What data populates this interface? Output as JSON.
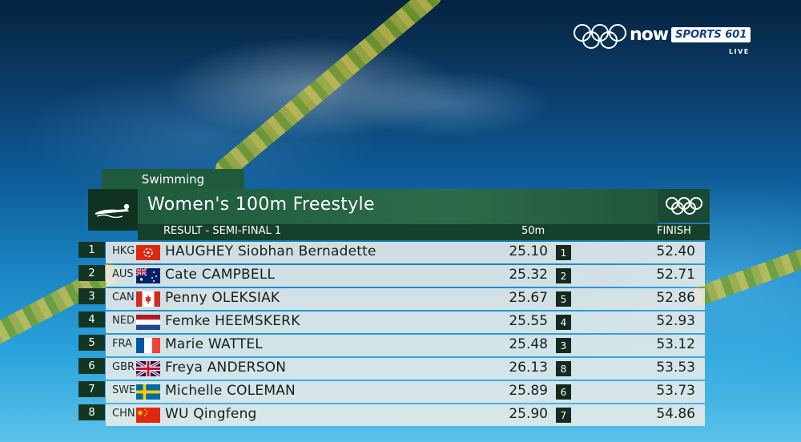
{
  "broadcast": {
    "brand": "now",
    "channel": "SPORTS 601",
    "status": "LIVE"
  },
  "graphic": {
    "sport": "Swimming",
    "event": "Women's 100m Freestyle",
    "stage": "RESULT - SEMI-FINAL 1",
    "col_split": "50m",
    "col_finish": "FINISH"
  },
  "results": [
    {
      "rank": "1",
      "country": "HKG",
      "flag": "hkg",
      "name": "HAUGHEY Siobhan Bernadette",
      "split": "25.10",
      "split_rank": "1",
      "finish": "52.40"
    },
    {
      "rank": "2",
      "country": "AUS",
      "flag": "aus",
      "name": "Cate CAMPBELL",
      "split": "25.32",
      "split_rank": "2",
      "finish": "52.71"
    },
    {
      "rank": "3",
      "country": "CAN",
      "flag": "can",
      "name": "Penny OLEKSIAK",
      "split": "25.67",
      "split_rank": "5",
      "finish": "52.86"
    },
    {
      "rank": "4",
      "country": "NED",
      "flag": "ned",
      "name": "Femke HEEMSKERK",
      "split": "25.55",
      "split_rank": "4",
      "finish": "52.93"
    },
    {
      "rank": "5",
      "country": "FRA",
      "flag": "fra",
      "name": "Marie WATTEL",
      "split": "25.48",
      "split_rank": "3",
      "finish": "53.12"
    },
    {
      "rank": "6",
      "country": "GBR",
      "flag": "gbr",
      "name": "Freya ANDERSON",
      "split": "26.13",
      "split_rank": "8",
      "finish": "53.53"
    },
    {
      "rank": "7",
      "country": "SWE",
      "flag": "swe",
      "name": "Michelle COLEMAN",
      "split": "25.89",
      "split_rank": "6",
      "finish": "53.73"
    },
    {
      "rank": "8",
      "country": "CHN",
      "flag": "chn",
      "name": "WU Qingfeng",
      "split": "25.90",
      "split_rank": "7",
      "finish": "54.86"
    }
  ]
}
